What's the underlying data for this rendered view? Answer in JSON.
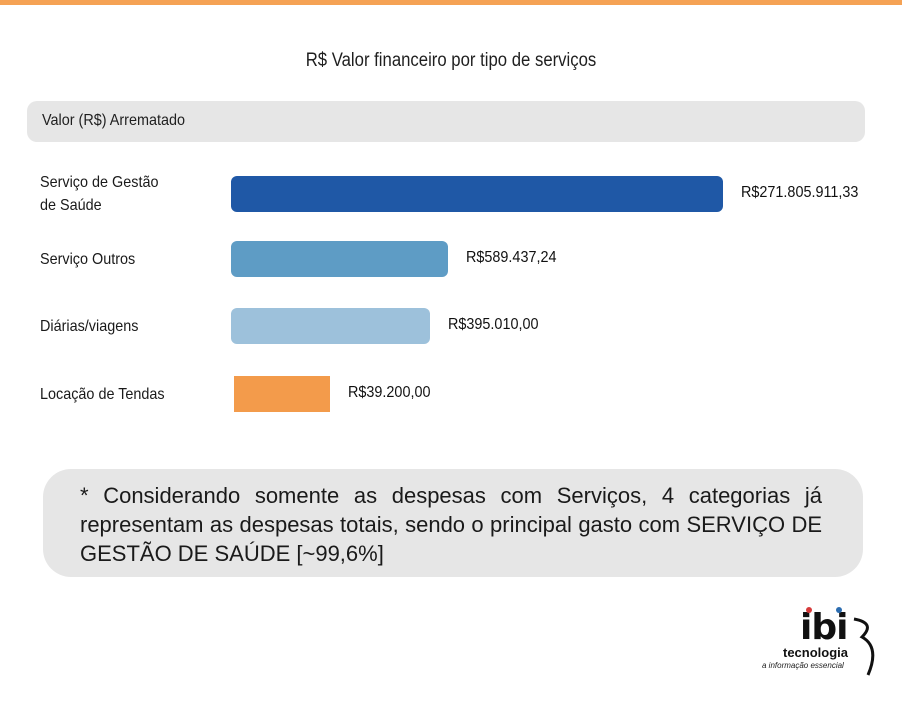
{
  "chart_data": {
    "type": "bar",
    "orientation": "horizontal",
    "title": "R$ Valor financeiro por tipo de serviços",
    "header": "Valor (R$) Arrematado",
    "categories": [
      "Serviço de Gestão\nde Saúde",
      "Serviço Outros",
      "Diárias/viagens",
      "Locação de Tendas"
    ],
    "values": [
      271805911.33,
      589437.24,
      395010.0,
      39200.0
    ],
    "value_labels": [
      "R$271.805.911,33",
      "R$589.437,24",
      "R$395.010,00",
      "R$39.200,00"
    ],
    "colors": [
      "#1f58a6",
      "#5e9cc5",
      "#9dc1db",
      "#f39b4b"
    ],
    "grid": false,
    "legend": "none"
  },
  "note": "* Considerando somente as despesas com Serviços, 4 categorias já representam as despesas totais, sendo o principal gasto com SERVIÇO DE GESTÃO DE SAÚDE [~99,6%]",
  "logo": {
    "word": "ibi",
    "sub": "tecnologia",
    "tagline": "a informação essencial",
    "dot_colors": [
      "#d63a3a",
      "#2b6cb0"
    ]
  }
}
